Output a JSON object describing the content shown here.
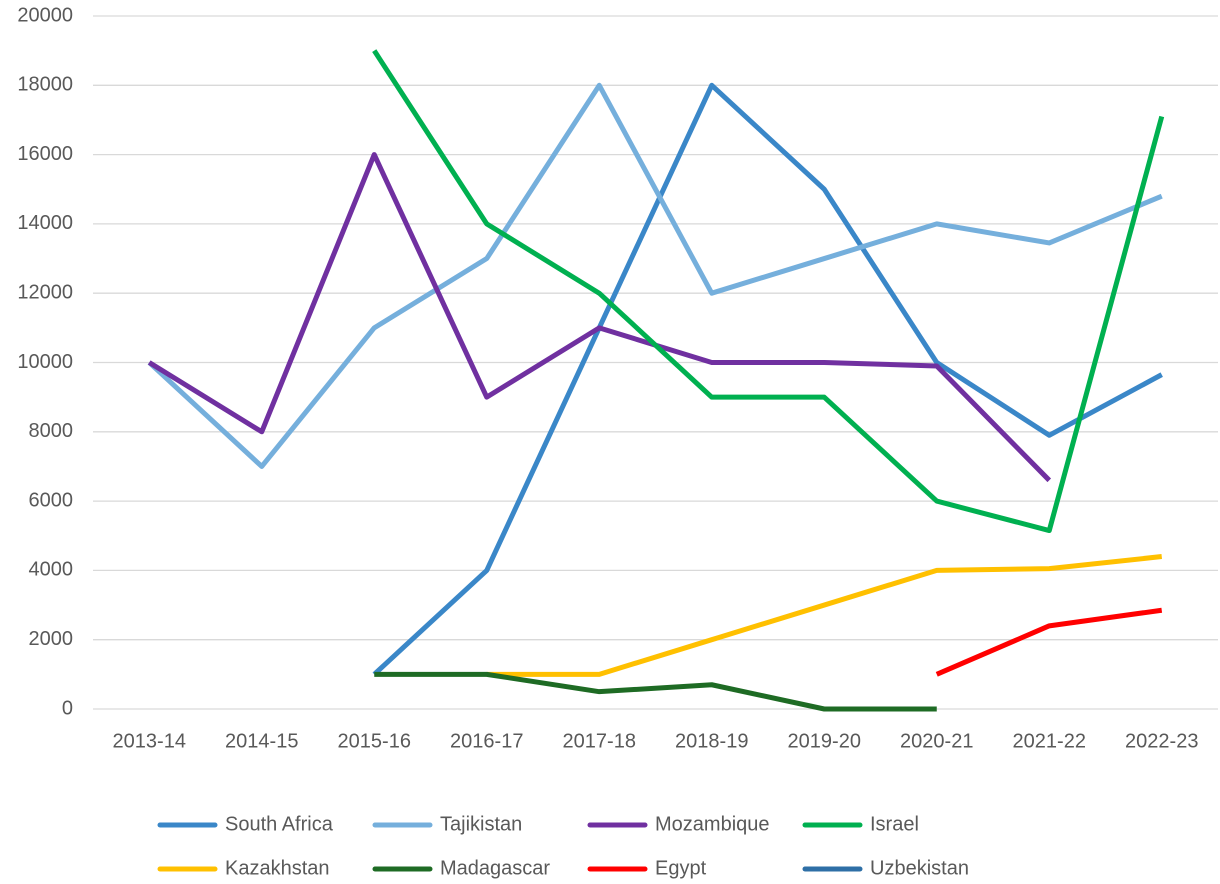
{
  "chart_data": {
    "type": "line",
    "categories": [
      "2013-14",
      "2014-15",
      "2015-16",
      "2016-17",
      "2017-18",
      "2018-19",
      "2019-20",
      "2020-21",
      "2021-22",
      "2022-23"
    ],
    "series": [
      {
        "name": "South Africa",
        "color": "#3a87c8",
        "values": [
          null,
          null,
          1000,
          4000,
          11000,
          18000,
          15000,
          10000,
          7900,
          9650
        ]
      },
      {
        "name": "Tajikistan",
        "color": "#75afdc",
        "values": [
          10000,
          7000,
          11000,
          13000,
          18000,
          12000,
          13000,
          14000,
          13450,
          14800
        ]
      },
      {
        "name": "Mozambique",
        "color": "#7030a0",
        "values": [
          10000,
          8000,
          16000,
          9000,
          11000,
          10000,
          10000,
          9900,
          6600,
          null
        ]
      },
      {
        "name": "Israel",
        "color": "#00b050",
        "values": [
          null,
          null,
          19000,
          14000,
          12000,
          9000,
          9000,
          6000,
          5150,
          17100
        ]
      },
      {
        "name": "Kazakhstan",
        "color": "#ffc000",
        "values": [
          null,
          null,
          null,
          1000,
          1000,
          2000,
          3000,
          4000,
          4050,
          4400
        ]
      },
      {
        "name": "Madagascar",
        "color": "#1e6b24",
        "values": [
          null,
          null,
          1000,
          1000,
          500,
          700,
          0,
          0,
          null,
          null
        ]
      },
      {
        "name": "Egypt",
        "color": "#ff0000",
        "values": [
          null,
          null,
          null,
          null,
          null,
          null,
          null,
          1000,
          2400,
          2850
        ]
      },
      {
        "name": "Uzbekistan",
        "color": "#2e6fa6",
        "values": [
          null,
          null,
          null,
          null,
          null,
          null,
          null,
          null,
          null,
          null
        ]
      }
    ],
    "ylim": [
      0,
      20000
    ],
    "yticks": [
      0,
      2000,
      4000,
      6000,
      8000,
      10000,
      12000,
      14000,
      16000,
      18000,
      20000
    ],
    "grid": true,
    "legend": "bottom"
  }
}
